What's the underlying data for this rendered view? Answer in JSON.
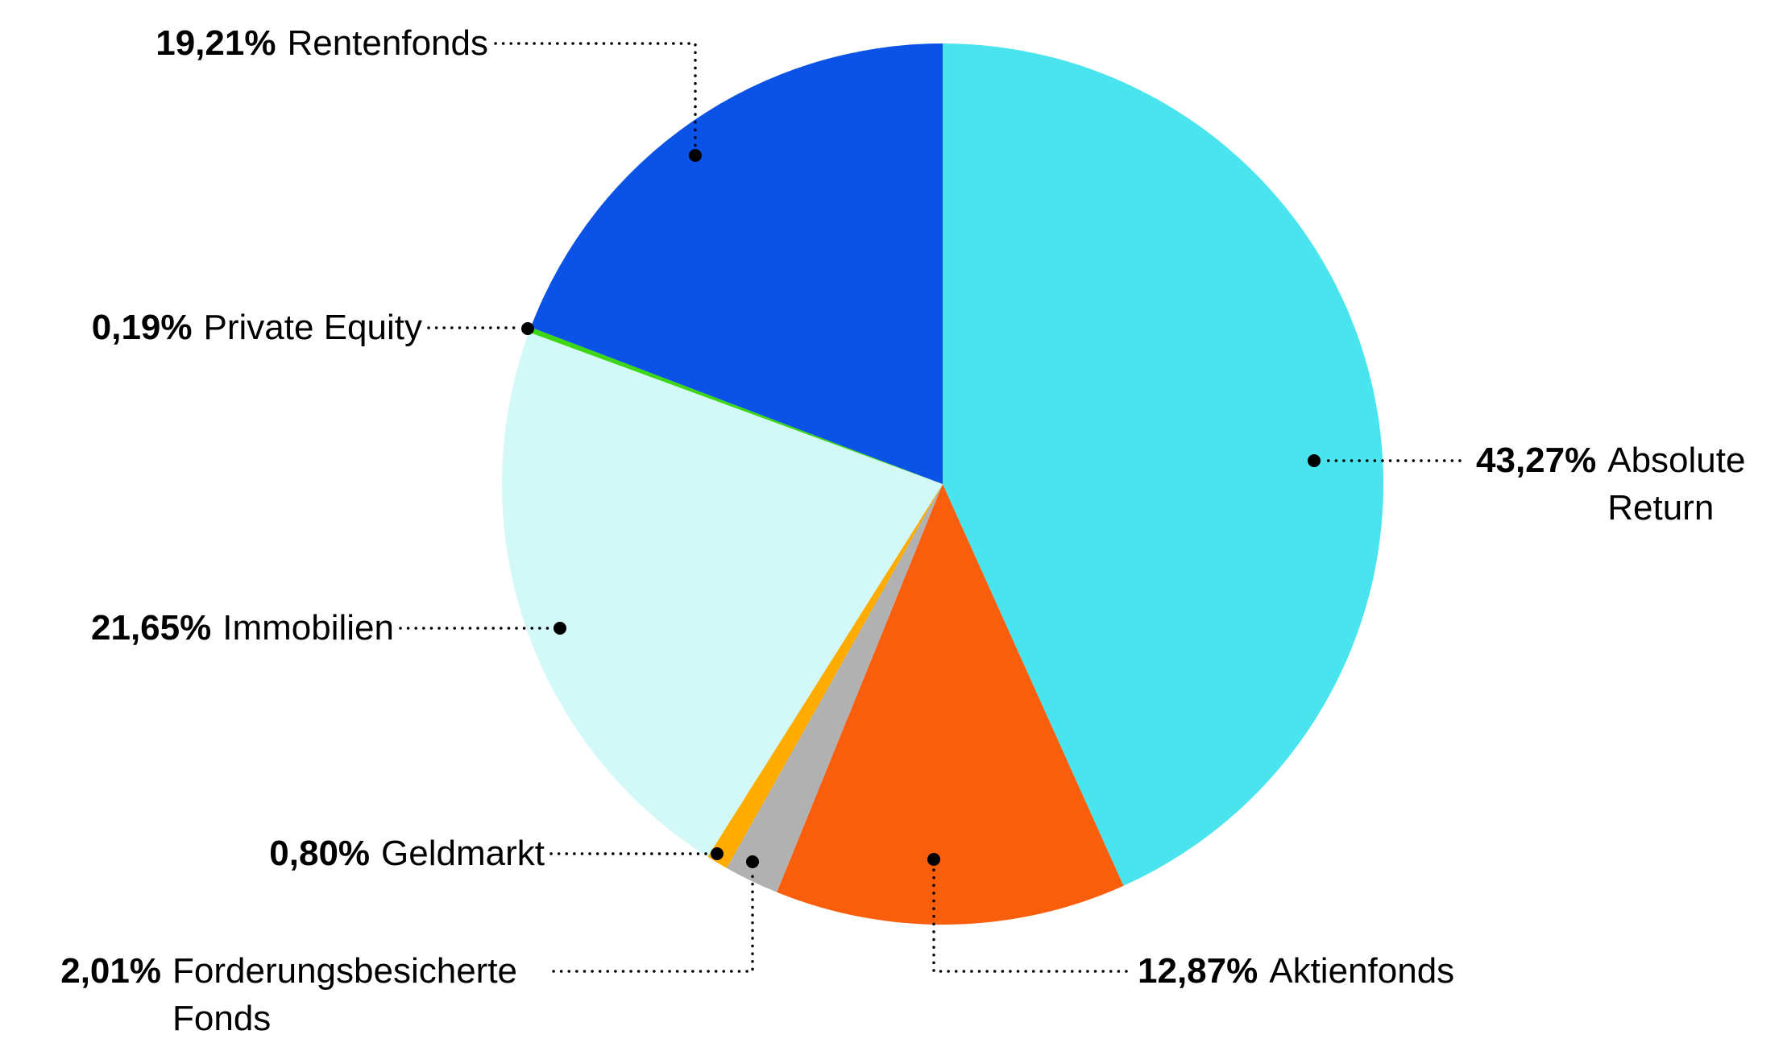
{
  "chart_data": {
    "type": "pie",
    "title": "",
    "legend": "none",
    "label_style": "callout-dotted-leader",
    "start_angle_deg": 0,
    "direction": "clockwise",
    "background": "#FFFFFF",
    "text_color": "#000000",
    "slices": [
      {
        "name": "Absolute Return",
        "value": 43.27,
        "percent_label": "43,27%",
        "color": "#4AE4EF"
      },
      {
        "name": "Aktienfonds",
        "value": 12.87,
        "percent_label": "12,87%",
        "color": "#F95E0D"
      },
      {
        "name": "Forderungsbesicherte Fonds",
        "value": 2.01,
        "percent_label": "2,01%",
        "color": "#B1B1B1"
      },
      {
        "name": "Geldmarkt",
        "value": 0.8,
        "percent_label": "0,80%",
        "color": "#FFAB00"
      },
      {
        "name": "Immobilien",
        "value": 21.65,
        "percent_label": "21,65%",
        "color": "#D2F8F8"
      },
      {
        "name": "Private Equity",
        "value": 0.19,
        "percent_label": "0,19%",
        "color": "#3ED715"
      },
      {
        "name": "Rentenfonds",
        "value": 19.21,
        "percent_label": "19,21%",
        "color": "#0B52E6"
      }
    ]
  }
}
